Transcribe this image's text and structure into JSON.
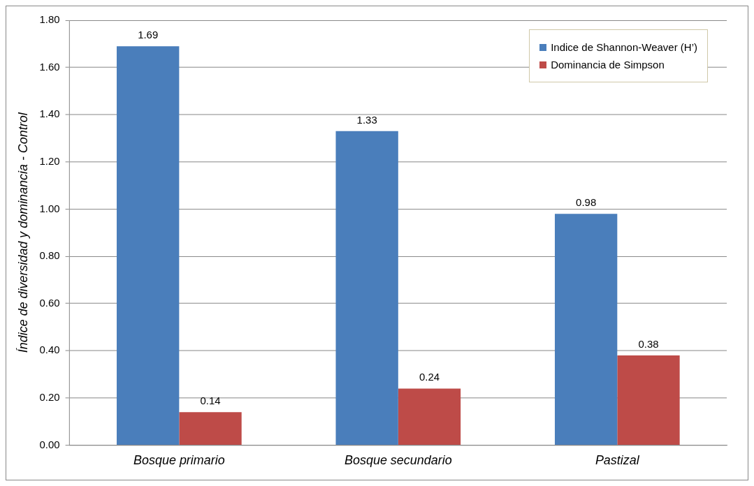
{
  "chart_data": {
    "type": "bar",
    "ylabel": "Índice de diversidad y dominancia - Control",
    "categories": [
      "Bosque primario",
      "Bosque secundario",
      "Pastizal"
    ],
    "series": [
      {
        "name": "Indice de  Shannon-Weaver (H’)",
        "color": "#4a7ebb",
        "values": [
          1.69,
          1.33,
          0.98
        ]
      },
      {
        "name": "Dominancia de Simpson",
        "color": "#be4b48",
        "values": [
          0.14,
          0.24,
          0.38
        ]
      }
    ],
    "ylim": [
      0,
      1.8
    ],
    "yticks": [
      {
        "value": 0,
        "label": "0.00"
      },
      {
        "value": 0.2,
        "label": "0.20"
      },
      {
        "value": 0.4,
        "label": "0.40"
      },
      {
        "value": 0.6,
        "label": "0.60"
      },
      {
        "value": 0.8,
        "label": "0.80"
      },
      {
        "value": 1,
        "label": "1.00"
      },
      {
        "value": 1.2,
        "label": "1.20"
      },
      {
        "value": 1.4,
        "label": "1.40"
      },
      {
        "value": 1.6,
        "label": "1.60"
      },
      {
        "value": 1.8,
        "label": "1.80"
      }
    ],
    "grid": "y",
    "legend": "top right",
    "data_labels": true
  }
}
